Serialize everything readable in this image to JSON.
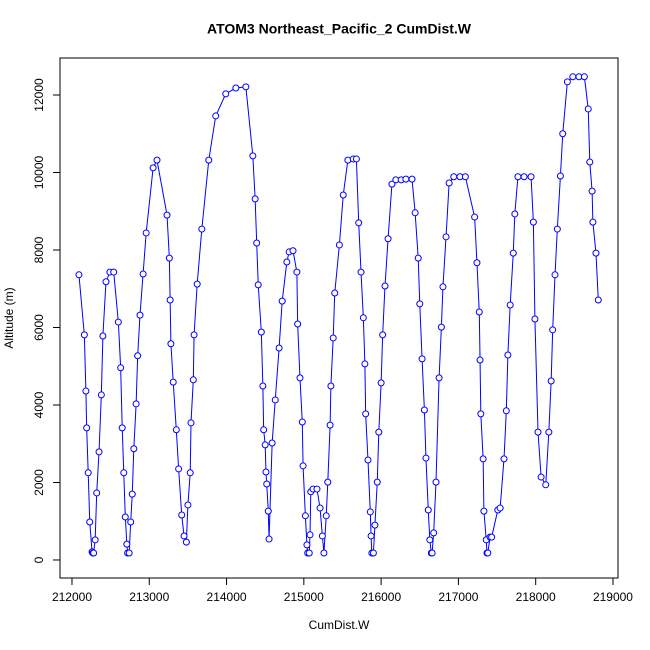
{
  "chart_data": {
    "type": "line",
    "title": "ATOM3 Northeast_Pacific_2 CumDist.W",
    "x_label": "CumDist.W",
    "y_label": "Altitude (m)",
    "xlim": [
      211845,
      219065
    ],
    "ylim": [
      -465,
      12955
    ],
    "xticks": [
      212000,
      213000,
      214000,
      215000,
      216000,
      217000,
      218000,
      219000
    ],
    "yticks": [
      0,
      2000,
      4000,
      6000,
      8000,
      10000,
      12000
    ],
    "color": "#0000ff",
    "marker": "open-circle",
    "x": [
      212090,
      212160,
      212180,
      212190,
      212210,
      212230,
      212260,
      212270,
      212280,
      212300,
      212320,
      212350,
      212380,
      212400,
      212440,
      212490,
      212540,
      212600,
      212630,
      212650,
      212670,
      212690,
      212710,
      212720,
      212740,
      212760,
      212780,
      212800,
      212830,
      212850,
      212880,
      212920,
      212960,
      213050,
      213100,
      213230,
      213260,
      213270,
      213280,
      213310,
      213350,
      213380,
      213420,
      213450,
      213480,
      213500,
      213530,
      213540,
      213570,
      213580,
      213620,
      213680,
      213770,
      213860,
      213990,
      214120,
      214250,
      214340,
      214370,
      214390,
      214410,
      214450,
      214470,
      214480,
      214500,
      214510,
      214520,
      214540,
      214550,
      214590,
      214630,
      214680,
      214720,
      214780,
      214810,
      214860,
      214910,
      214920,
      214950,
      214980,
      214990,
      215020,
      215040,
      215050,
      215070,
      215080,
      215090,
      215120,
      215170,
      215210,
      215240,
      215260,
      215290,
      215310,
      215340,
      215350,
      215380,
      215400,
      215460,
      215510,
      215570,
      215640,
      215680,
      215710,
      215740,
      215770,
      215790,
      215800,
      215830,
      215860,
      215870,
      215880,
      215900,
      215920,
      215950,
      215970,
      216000,
      216020,
      216050,
      216090,
      216140,
      216190,
      216260,
      216320,
      216400,
      216440,
      216480,
      216500,
      216530,
      216560,
      216580,
      216610,
      216630,
      216650,
      216660,
      216680,
      216710,
      216750,
      216780,
      216800,
      216840,
      216880,
      216940,
      217020,
      217090,
      217210,
      217240,
      217270,
      217280,
      217290,
      217320,
      217330,
      217360,
      217370,
      217380,
      217410,
      217430,
      217510,
      217540,
      217590,
      217620,
      217640,
      217670,
      217710,
      217730,
      217770,
      217850,
      217940,
      217970,
      217990,
      218030,
      218070,
      218130,
      218170,
      218200,
      218220,
      218250,
      218280,
      218320,
      218350,
      218410,
      218480,
      218560,
      218630,
      218680,
      218700,
      218730,
      218740,
      218780,
      218810
    ],
    "values": [
      7360,
      5810,
      4360,
      3410,
      2250,
      980,
      210,
      180,
      180,
      520,
      1730,
      2790,
      4260,
      5780,
      7180,
      7430,
      7430,
      6140,
      4960,
      3410,
      2250,
      1110,
      410,
      180,
      180,
      980,
      1700,
      2870,
      4030,
      5270,
      6320,
      7380,
      8440,
      10120,
      10320,
      8900,
      7790,
      6710,
      5580,
      4590,
      3360,
      2350,
      1160,
      620,
      460,
      1420,
      2250,
      3540,
      4650,
      5810,
      7120,
      8540,
      10320,
      11460,
      12030,
      12180,
      12210,
      10430,
      9320,
      8180,
      7100,
      5880,
      4490,
      3360,
      2970,
      2270,
      1960,
      1260,
      540,
      3020,
      4130,
      5470,
      6680,
      7690,
      7950,
      7980,
      7430,
      6090,
      4700,
      3560,
      2430,
      1140,
      390,
      180,
      180,
      650,
      1760,
      1830,
      1830,
      1340,
      620,
      180,
      1140,
      2010,
      3480,
      4490,
      5730,
      6890,
      8130,
      9420,
      10320,
      10350,
      10350,
      8700,
      7430,
      6250,
      5060,
      3770,
      2580,
      1240,
      620,
      180,
      180,
      900,
      2010,
      3300,
      4570,
      5810,
      7070,
      8290,
      9700,
      9810,
      9810,
      9830,
      9830,
      8960,
      7790,
      6610,
      5190,
      3870,
      2630,
      1290,
      520,
      180,
      180,
      700,
      2010,
      4700,
      6010,
      7050,
      8340,
      9730,
      9890,
      9890,
      9890,
      8850,
      7670,
      6400,
      5160,
      3770,
      2610,
      1260,
      520,
      180,
      180,
      590,
      590,
      1290,
      1340,
      2610,
      3850,
      5290,
      6580,
      7920,
      8930,
      9890,
      9890,
      9890,
      8720,
      6220,
      3300,
      2140,
      1940,
      3300,
      4620,
      5940,
      7360,
      8540,
      9910,
      11000,
      12340,
      12470,
      12470,
      12470,
      11640,
      10270,
      9520,
      8720,
      7920,
      6710
    ]
  }
}
